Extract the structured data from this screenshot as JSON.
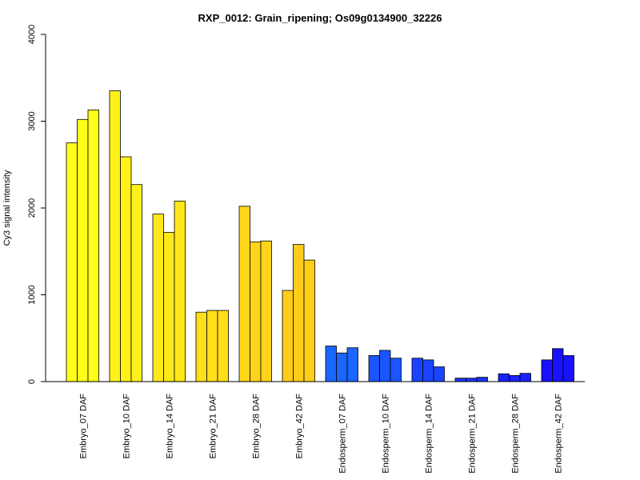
{
  "chart_data": {
    "type": "bar",
    "title": "RXP_0012: Grain_ripening; Os09g0134900_32226",
    "xlabel": "",
    "ylabel": "Cy3 signal intensity",
    "ylim": [
      0,
      4000
    ],
    "yticks": [
      0,
      1000,
      2000,
      3000,
      4000
    ],
    "grid": false,
    "legend": "none",
    "categories": [
      "Embryo_07 DAF",
      "Embryo_10 DAF",
      "Embryo_14 DAF",
      "Embryo_21 DAF",
      "Embryo_28 DAF",
      "Embryo_42 DAF",
      "Endosperm_07 DAF",
      "Endosperm_10 DAF",
      "Endosperm_14 DAF",
      "Endosperm_21 DAF",
      "Endosperm_28 DAF",
      "Endosperm_42 DAF"
    ],
    "group_colors": [
      "#ffff1a",
      "#fff21a",
      "#ffe81a",
      "#ffde1a",
      "#ffd51a",
      "#ffcc1a",
      "#1a66ff",
      "#1a55ff",
      "#1a44ff",
      "#1a33ff",
      "#1a22ff",
      "#1a11ff"
    ],
    "replicate_values": [
      [
        2750,
        3020,
        3130
      ],
      [
        3350,
        2590,
        2270
      ],
      [
        1930,
        1720,
        2080
      ],
      [
        800,
        820,
        820
      ],
      [
        2020,
        1610,
        1620
      ],
      [
        1050,
        1580,
        1400
      ],
      [
        410,
        330,
        390
      ],
      [
        300,
        360,
        270
      ],
      [
        270,
        250,
        170
      ],
      [
        40,
        40,
        50
      ],
      [
        90,
        70,
        95
      ],
      [
        250,
        380,
        300
      ]
    ]
  }
}
